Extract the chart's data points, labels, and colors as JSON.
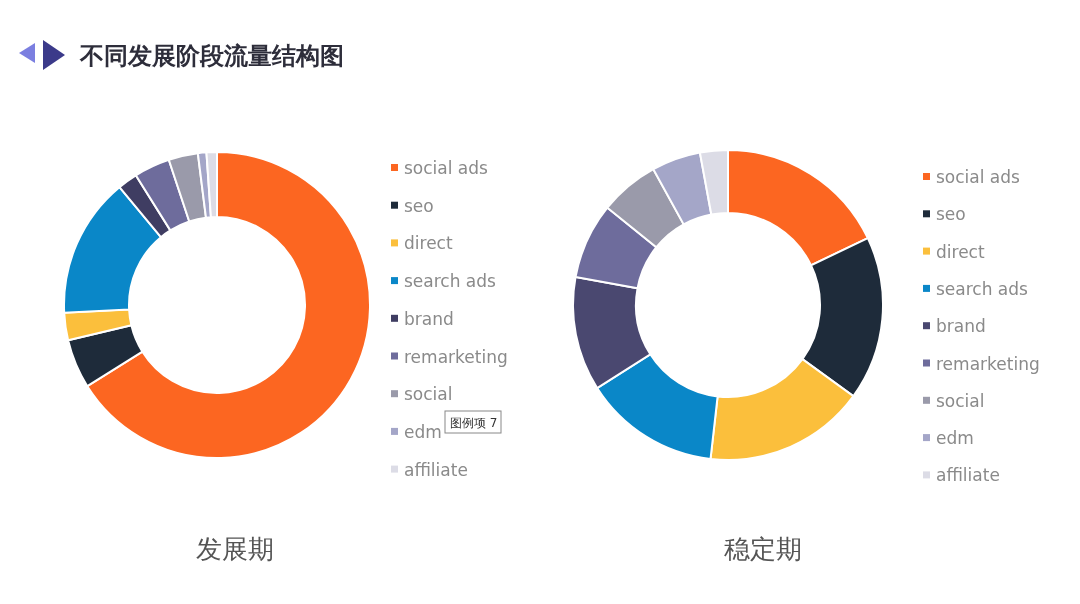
{
  "chart_data": [
    {
      "type": "donut",
      "title": "发展期",
      "annotations": [
        "不同发展阶段流量结构图",
        "图例项 7"
      ],
      "legend": "right",
      "categories": [
        "social ads",
        "seo",
        "direct",
        "search ads",
        "brand",
        "remarketing",
        "social",
        "edm",
        "affiliate"
      ],
      "values": [
        66.1,
        5.2,
        2.9,
        14.8,
        2.1,
        3.8,
        3.1,
        0.9,
        1.1
      ],
      "colors": [
        "#fc6621",
        "#1e2b3a",
        "#fbbf3c",
        "#0a87c8",
        "#3f3d62",
        "#6e6c9c",
        "#9a9aaa",
        "#a4a6c8",
        "#dcdce6"
      ]
    },
    {
      "type": "donut",
      "title": "稳定期",
      "legend": "right",
      "categories": [
        "social ads",
        "seo",
        "direct",
        "search ads",
        "brand",
        "remarketing",
        "social",
        "edm",
        "affiliate"
      ],
      "values": [
        17.9,
        17.1,
        16.8,
        14.2,
        11.9,
        7.9,
        6.2,
        5.1,
        2.9
      ],
      "colors": [
        "#fc6621",
        "#1e2b3a",
        "#fbbf3c",
        "#0a87c8",
        "#4a4870",
        "#6e6c9c",
        "#9a9aaa",
        "#a4a6c8",
        "#dcdce6"
      ]
    }
  ]
}
